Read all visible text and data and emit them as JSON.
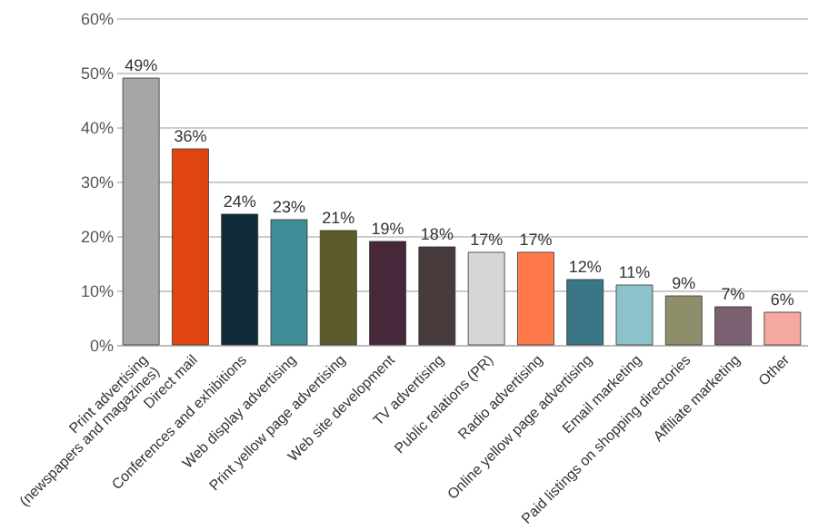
{
  "chart_data": {
    "type": "bar",
    "categories": [
      "Print advertising\n(newspapers and magazines)",
      "Direct mail",
      "Conferences and exhibitions",
      "Web display advertising",
      "Print yellow page advertising",
      "Web site development",
      "TV advertising",
      "Public relations (PR)",
      "Radio advertising",
      "Online yellow page advertising",
      "Email marketing",
      "Paid listings on shopping directories",
      "Affiliate marketing",
      "Other"
    ],
    "values": [
      49,
      36,
      24,
      23,
      21,
      19,
      18,
      17,
      17,
      12,
      11,
      9,
      7,
      6
    ],
    "colors": [
      "#a6a6a6",
      "#e0450f",
      "#0f2a3a",
      "#3f8d99",
      "#5a5a2a",
      "#47283a",
      "#463a3a",
      "#d6d6d4",
      "#ff7a4a",
      "#3a7588",
      "#8cc2cc",
      "#8e8e6a",
      "#7a6070",
      "#f4a8a0"
    ],
    "value_labels": [
      "49%",
      "36%",
      "24%",
      "23%",
      "21%",
      "19%",
      "18%",
      "17%",
      "17%",
      "12%",
      "11%",
      "9%",
      "7%",
      "6%"
    ],
    "ylim": [
      0,
      60
    ],
    "yticks": [
      {
        "value": 0,
        "label": "0%"
      },
      {
        "value": 10,
        "label": "10%"
      },
      {
        "value": 20,
        "label": "20%"
      },
      {
        "value": 30,
        "label": "30%"
      },
      {
        "value": 40,
        "label": "40%"
      },
      {
        "value": 50,
        "label": "50%"
      },
      {
        "value": 60,
        "label": "60%"
      }
    ],
    "grid": "y",
    "legend": false
  }
}
